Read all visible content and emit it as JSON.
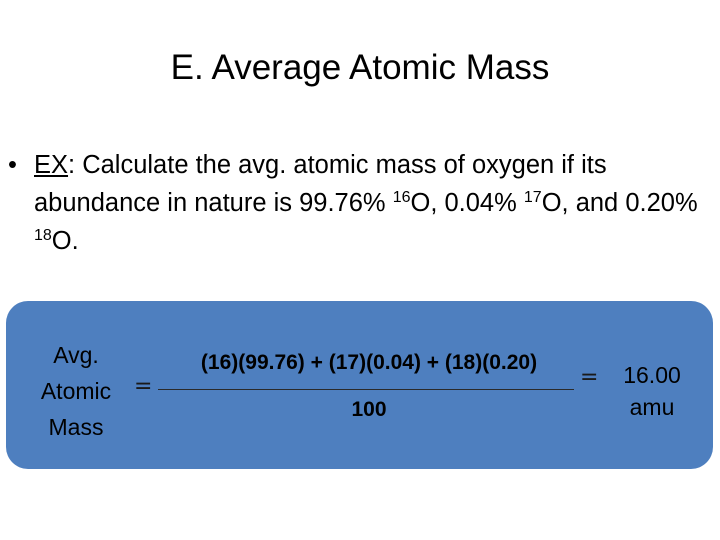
{
  "slide": {
    "title": "E. Average Atomic Mass"
  },
  "bullet": {
    "dot": "•",
    "ex_label": "EX",
    "text_1": ": Calculate the avg. atomic mass of oxygen if its abundance in nature is 99.76% ",
    "iso_1": "16",
    "text_2": "O, 0.04% ",
    "iso_2": "17",
    "text_3": "O, and 0.20% ",
    "iso_3": "18",
    "text_4": "O."
  },
  "equation": {
    "lhs_line1": "Avg.",
    "lhs_line2": "Atomic",
    "lhs_line3": "Mass",
    "equals_1": "=",
    "numerator": "(16)(99.76) + (17)(0.04) + (18)(0.20)",
    "denominator": "100",
    "equals_2": "=",
    "result_line1": "16.00",
    "result_line2": "amu"
  },
  "colors": {
    "panel_background": "#4e7fbf"
  }
}
